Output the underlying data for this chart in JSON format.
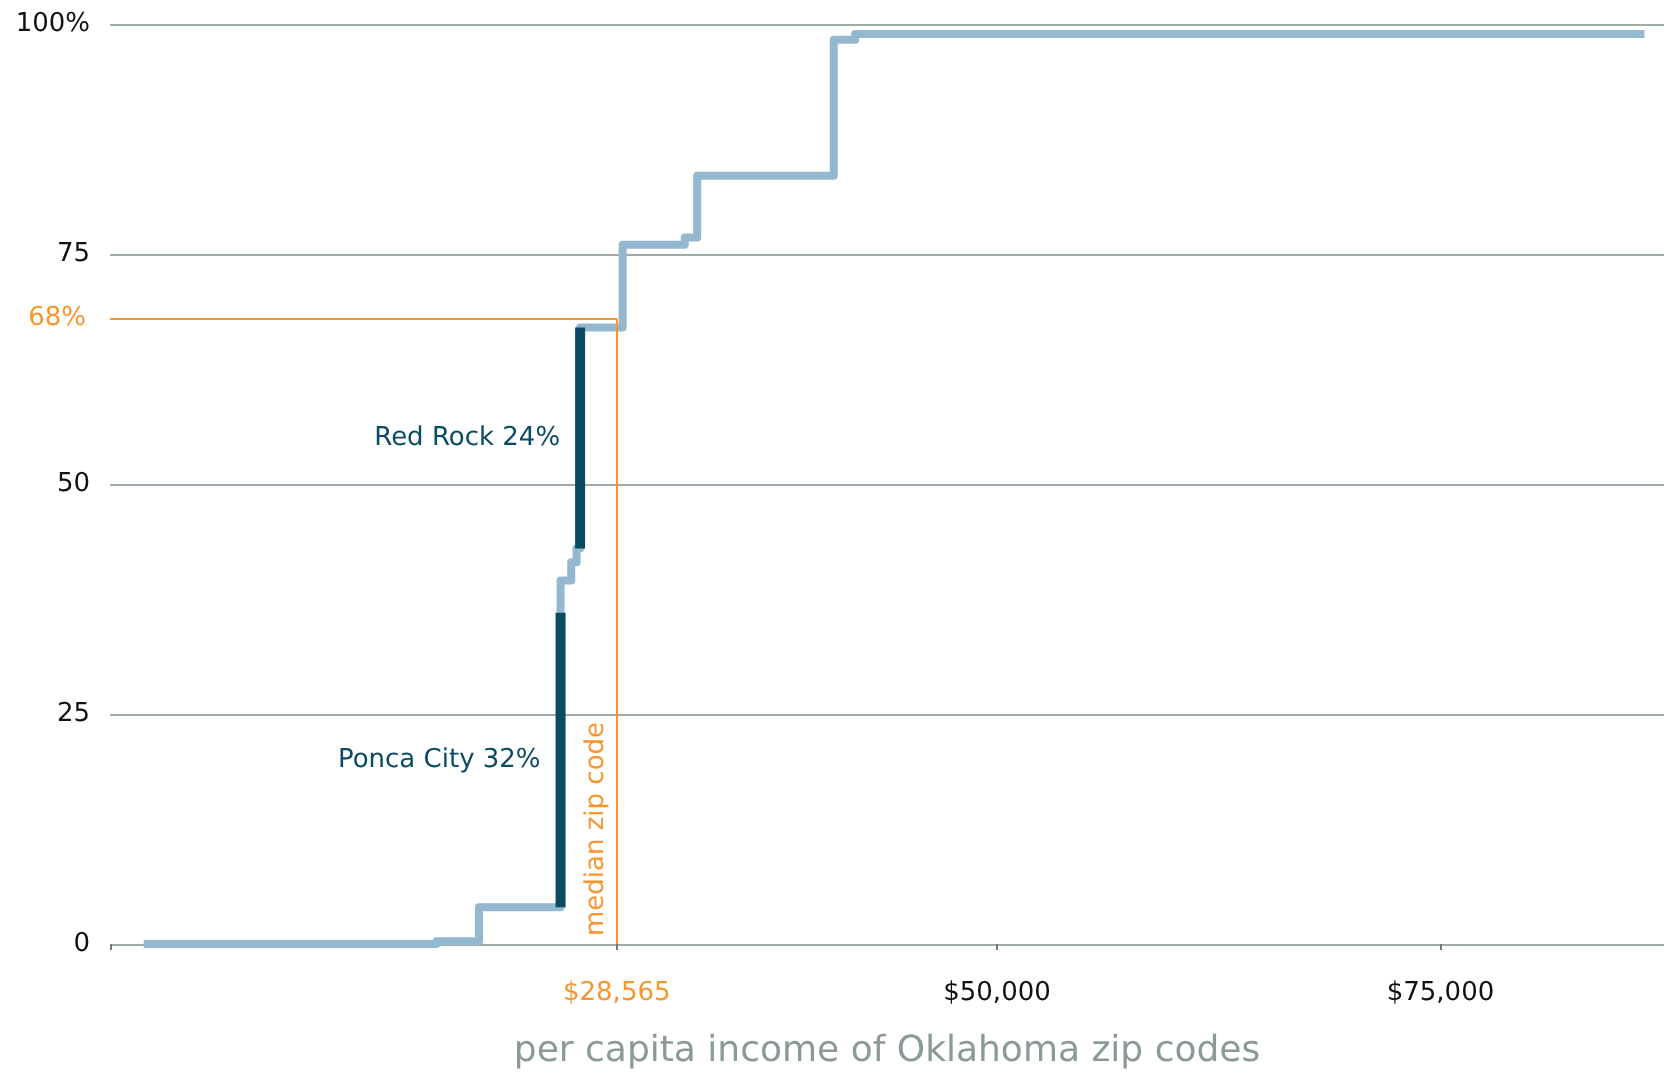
{
  "chart_data": {
    "type": "step",
    "xlabel": "per capita income of Oklahoma zip codes",
    "xlim": [
      0,
      87600
    ],
    "xticks": [
      {
        "value": 0,
        "label": null
      },
      {
        "value": 28565,
        "label": "$28,565"
      },
      {
        "value": 50000,
        "label": "$50,000"
      },
      {
        "value": 75000,
        "label": "$75,000"
      }
    ],
    "ylim": [
      0,
      100
    ],
    "yticks": [
      0,
      25,
      50,
      75,
      {
        "value": 100,
        "label": "100%"
      }
    ],
    "grid": "y",
    "series": [
      {
        "color": "#93b8cf",
        "x": [
          1900,
          18400,
          20800,
          25400,
          26000,
          26300,
          26500,
          28900,
          32400,
          33100,
          40800,
          42000,
          86500
        ],
        "values": [
          0,
          0.3,
          4,
          39.5,
          41.5,
          43,
          67,
          76,
          76.8,
          83.5,
          98.3,
          98.9,
          98.9
        ]
      },
      {
        "name": "Ponca City 32%",
        "type": "line",
        "color": "#0b4a63",
        "x": [
          25400,
          25400
        ],
        "values": [
          4,
          36
        ]
      },
      {
        "name": "Red Rock 24%",
        "type": "line",
        "color": "#0b4a63",
        "x": [
          26500,
          26500
        ],
        "values": [
          43,
          67
        ]
      }
    ],
    "ref_lines": [
      {
        "axis": "y",
        "value": 68,
        "label": "68%",
        "color": "#f7962e"
      },
      {
        "axis": "x",
        "value": 28565,
        "label": "median zip code",
        "color": "#f7962e"
      }
    ]
  }
}
